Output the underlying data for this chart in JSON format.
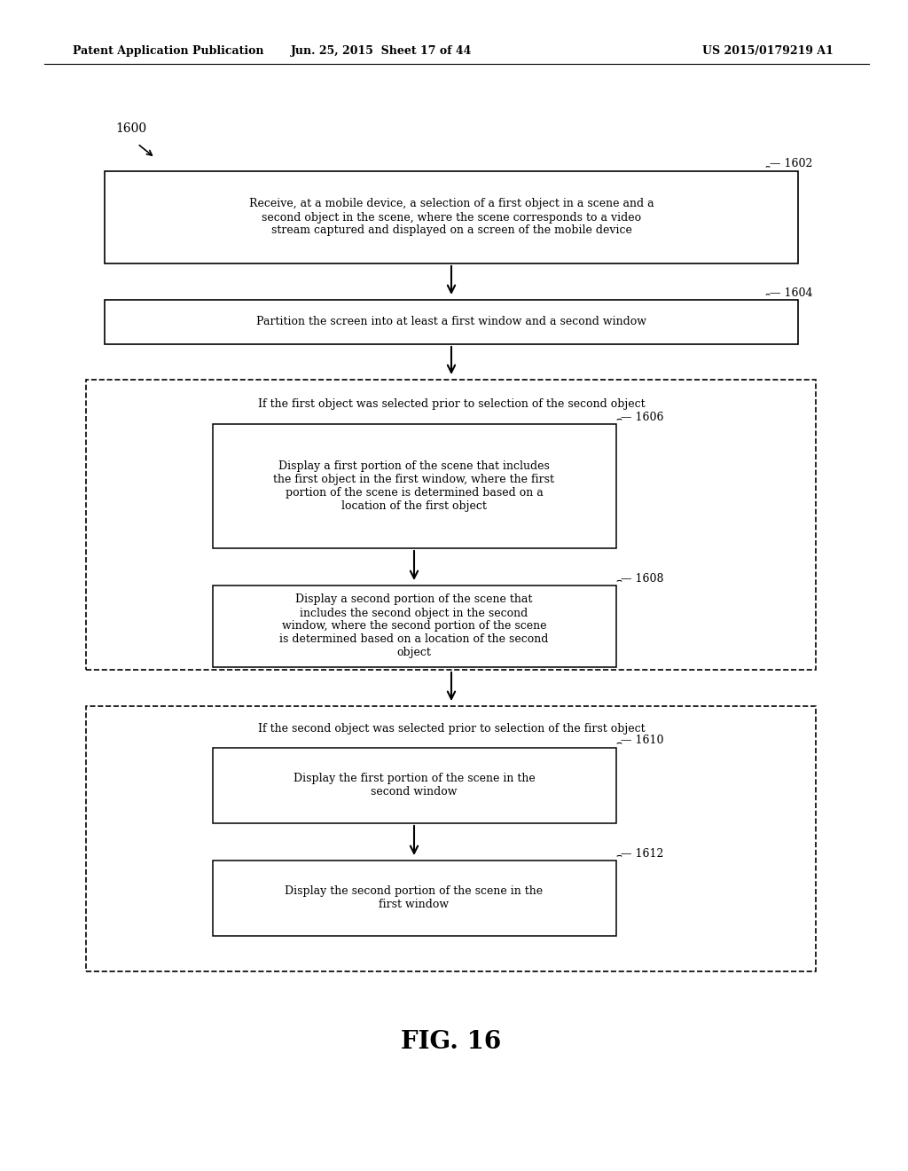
{
  "bg_color": "#ffffff",
  "header_left": "Patent Application Publication",
  "header_mid": "Jun. 25, 2015  Sheet 17 of 44",
  "header_right": "US 2015/0179219 A1",
  "fig_label": "FIG. 16",
  "diagram_label": "1600",
  "box1602_text": "Receive, at a mobile device, a selection of a first object in a scene and a\nsecond object in the scene, where the scene corresponds to a video\nstream captured and displayed on a screen of the mobile device",
  "box1604_text": "Partition the screen into at least a first window and a second window",
  "outer1_text": "If the first object was selected prior to selection of the second object",
  "box1606_text": "Display a first portion of the scene that includes\nthe first object in the first window, where the first\nportion of the scene is determined based on a\nlocation of the first object",
  "box1608_text": "Display a second portion of the scene that\nincludes the second object in the second\nwindow, where the second portion of the scene\nis determined based on a location of the second\nobject",
  "outer2_text": "If the second object was selected prior to selection of the first object",
  "box1610_text": "Display the first portion of the scene in the\nsecond window",
  "box1612_text": "Display the second portion of the scene in the\nfirst window"
}
